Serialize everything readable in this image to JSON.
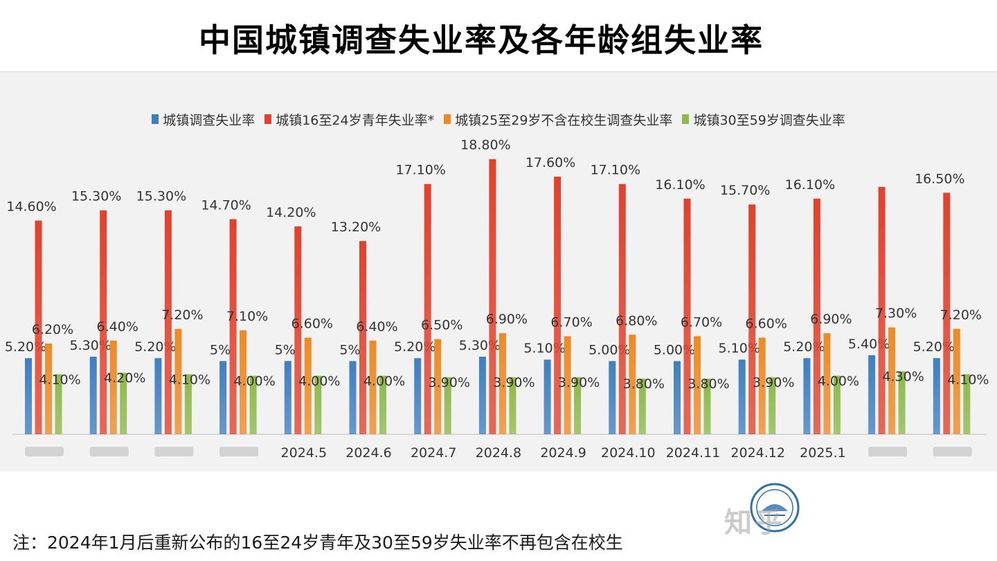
{
  "title": "中国城镇调查失业率及各年龄组失业率",
  "footnote": "注：2024年1月后重新公布的16至24岁青年及30至59岁失业率不再包含在校生",
  "watermark": "知乎",
  "chart_data": {
    "type": "bar",
    "categories": [
      "",
      "",
      "",
      "",
      "2024.5",
      "2024.6",
      "2024.7",
      "2024.8",
      "2024.9",
      "2024.10",
      "2024.11",
      "2024.12",
      "2025.1",
      "",
      ""
    ],
    "ylim": [
      0,
      19.5
    ],
    "legend_position": "top",
    "grid": false,
    "series": [
      {
        "name": "城镇调查失业率",
        "color": "#3f7fc1",
        "values": [
          5.2,
          5.3,
          5.2,
          5.0,
          5.0,
          5.0,
          5.2,
          5.3,
          5.1,
          5.0,
          5.0,
          5.1,
          5.2,
          5.4,
          5.2
        ],
        "labels": [
          "5.20%",
          "5.30%",
          "5.20%",
          "5%",
          "5%",
          "5%",
          "5.20%",
          "5.30%",
          "5.10%",
          "5.00%",
          "5.00%",
          "5.10%",
          "5.20%",
          "5.40%",
          "5.20%"
        ]
      },
      {
        "name": "城镇16至24岁青年失业率*",
        "color": "#e2412c",
        "values": [
          14.6,
          15.3,
          15.3,
          14.7,
          14.2,
          13.2,
          17.1,
          18.8,
          17.6,
          17.1,
          16.1,
          15.7,
          16.1,
          16.9,
          16.5
        ],
        "labels": [
          "14.60%",
          "15.30%",
          "15.30%",
          "14.70%",
          "14.20%",
          "13.20%",
          "17.10%",
          "18.80%",
          "17.60%",
          "17.10%",
          "16.10%",
          "15.70%",
          "16.10%",
          "",
          "16.50%"
        ]
      },
      {
        "name": "城镇25至29岁不含在校生调查失业率",
        "color": "#ee8a25",
        "values": [
          6.2,
          6.4,
          7.2,
          7.1,
          6.6,
          6.4,
          6.5,
          6.9,
          6.7,
          6.8,
          6.7,
          6.6,
          6.9,
          7.3,
          7.2
        ],
        "labels": [
          "6.20%",
          "6.40%",
          "7.20%",
          "7.10%",
          "6.60%",
          "6.40%",
          "6.50%",
          "6.90%",
          "6.70%",
          "6.80%",
          "6.70%",
          "6.60%",
          "6.90%",
          "7.30%",
          "7.20%"
        ]
      },
      {
        "name": "城镇30至59岁调查失业率",
        "color": "#8dba4a",
        "values": [
          4.1,
          4.2,
          4.1,
          4.0,
          4.0,
          4.0,
          3.9,
          3.9,
          3.9,
          3.8,
          3.8,
          3.9,
          4.0,
          4.3,
          4.1
        ],
        "labels": [
          "4.10%",
          "4.20%",
          "4.10%",
          "4.00%",
          "4.00%",
          "4.00%",
          "3.90%",
          "3.90%",
          "3.90%",
          "3.80%",
          "3.80%",
          "3.90%",
          "4.00%",
          "4.30%",
          "4.10%"
        ]
      }
    ]
  }
}
